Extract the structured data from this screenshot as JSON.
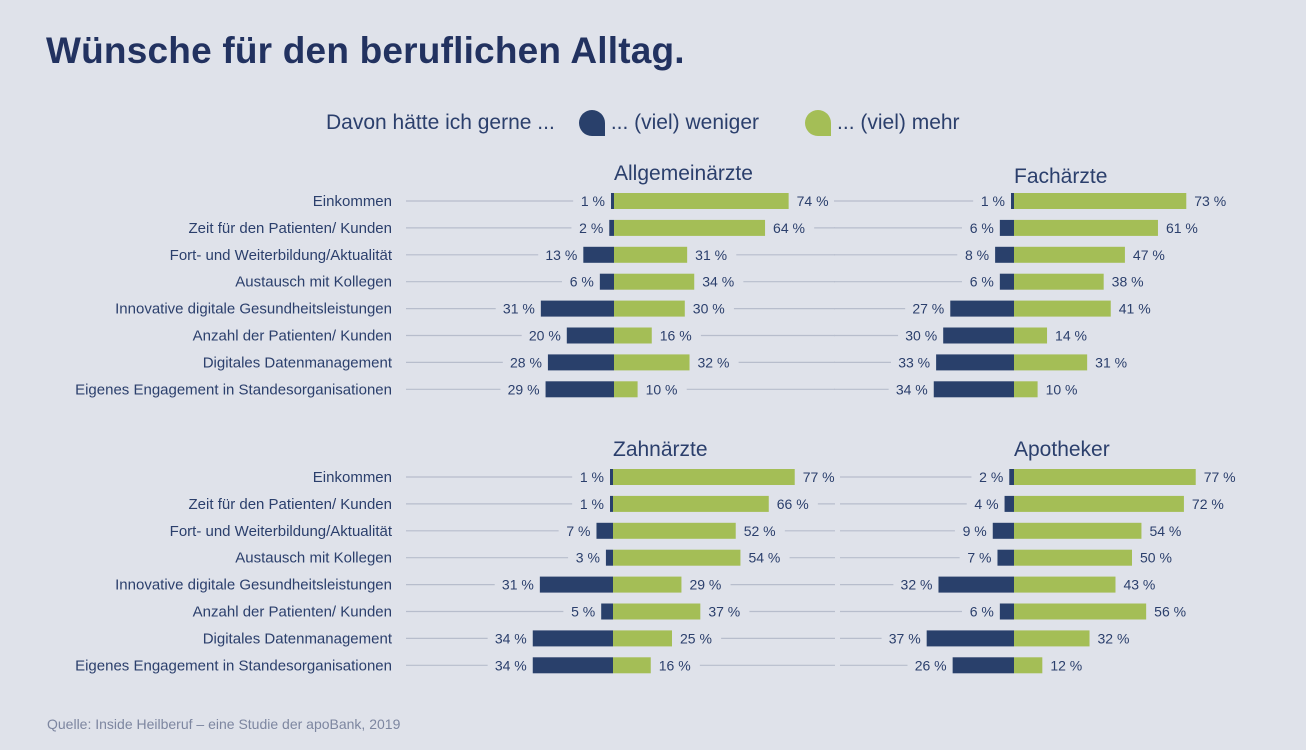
{
  "title": "Wünsche für den beruflichen Alltag.",
  "legend": {
    "lead": "Davon hätte ich gerne ...",
    "less_label": "... (viel) weniger",
    "more_label": "... (viel) mehr"
  },
  "colors": {
    "less": "#29406b",
    "more": "#a4be56",
    "leader": "#b7bdcc",
    "background": "#dfe2ea"
  },
  "source": "Quelle: Inside Heilberuf – eine Studie der apoBank, 2019",
  "chart_data": {
    "type": "bar",
    "orientation": "horizontal-diverging",
    "title": "Wünsche für den beruflichen Alltag.",
    "xlabel": "",
    "ylabel": "",
    "unit": "%",
    "grid": false,
    "legend_position": "top",
    "legend": [
      "... (viel) weniger",
      "... (viel) mehr"
    ],
    "categories": [
      "Einkommen",
      "Zeit für den Patienten/ Kunden",
      "Fort- und Weiterbildung/Aktualität",
      "Austausch mit Kollegen",
      "Innovative digitale Gesundheitsleistungen",
      "Anzahl der Patienten/ Kunden",
      "Digitales Datenmanagement",
      "Eigenes Engagement in Standesorganisationen"
    ],
    "panels": [
      {
        "name": "Allgemeinärzte",
        "series": [
          {
            "name": "... (viel) weniger",
            "values": [
              1,
              2,
              13,
              6,
              31,
              20,
              28,
              29
            ]
          },
          {
            "name": "... (viel) mehr",
            "values": [
              74,
              64,
              31,
              34,
              30,
              16,
              32,
              10
            ]
          }
        ]
      },
      {
        "name": "Fachärzte",
        "series": [
          {
            "name": "... (viel) weniger",
            "values": [
              1,
              6,
              8,
              6,
              27,
              30,
              33,
              34
            ]
          },
          {
            "name": "... (viel) mehr",
            "values": [
              73,
              61,
              47,
              38,
              41,
              14,
              31,
              10
            ]
          }
        ]
      },
      {
        "name": "Zahnärzte",
        "series": [
          {
            "name": "... (viel) weniger",
            "values": [
              1,
              1,
              7,
              3,
              31,
              5,
              34,
              34
            ]
          },
          {
            "name": "... (viel) mehr",
            "values": [
              77,
              66,
              52,
              54,
              29,
              37,
              25,
              16
            ]
          }
        ]
      },
      {
        "name": "Apotheker",
        "series": [
          {
            "name": "... (viel) weniger",
            "values": [
              2,
              4,
              9,
              7,
              32,
              6,
              37,
              26
            ]
          },
          {
            "name": "... (viel) mehr",
            "values": [
              77,
              72,
              54,
              50,
              43,
              56,
              32,
              12
            ]
          }
        ]
      }
    ]
  }
}
